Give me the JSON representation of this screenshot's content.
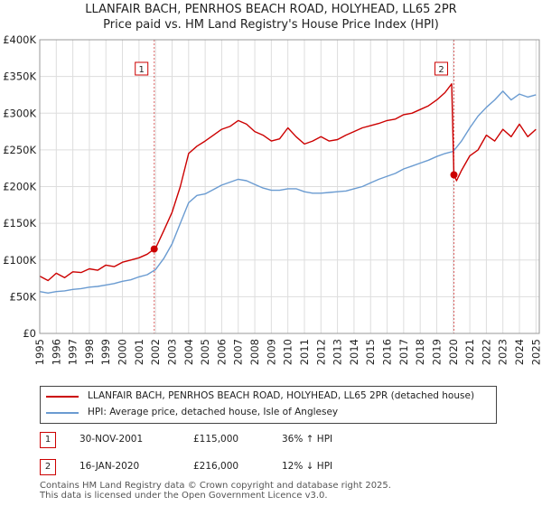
{
  "title_line1": "LLANFAIR BACH, PENRHOS BEACH ROAD, HOLYHEAD, LL65 2PR",
  "title_line2": "Price paid vs. HM Land Registry's House Price Index (HPI)",
  "colors": {
    "property": "#cc0000",
    "hpi": "#6a9bd1",
    "grid": "#dddddd",
    "marker_line": "#cc0000"
  },
  "legend": {
    "property_label": "LLANFAIR BACH, PENRHOS BEACH ROAD, HOLYHEAD, LL65 2PR (detached house)",
    "hpi_label": "HPI: Average price, detached house, Isle of Anglesey"
  },
  "sales": [
    {
      "number": "1",
      "date": "30-NOV-2001",
      "price": "£115,000",
      "hpi": "36% ↑ HPI"
    },
    {
      "number": "2",
      "date": "16-JAN-2020",
      "price": "£216,000",
      "hpi": "12% ↓ HPI"
    }
  ],
  "footer_line1": "Contains HM Land Registry data © Crown copyright and database right 2025.",
  "footer_line2": "This data is licensed under the Open Government Licence v3.0.",
  "chart_data": {
    "type": "line",
    "xlabel": "",
    "ylabel": "",
    "xlim": [
      1995,
      2025.2
    ],
    "ylim": [
      0,
      400000
    ],
    "y_ticks": [
      0,
      50000,
      100000,
      150000,
      200000,
      250000,
      300000,
      350000,
      400000
    ],
    "y_tick_labels": [
      "£0",
      "£50K",
      "£100K",
      "£150K",
      "£200K",
      "£250K",
      "£300K",
      "£350K",
      "£400K"
    ],
    "x_ticks": [
      1995,
      1996,
      1997,
      1998,
      1999,
      2000,
      2001,
      2002,
      2003,
      2004,
      2005,
      2006,
      2007,
      2008,
      2009,
      2010,
      2011,
      2012,
      2013,
      2014,
      2015,
      2016,
      2017,
      2018,
      2019,
      2020,
      2021,
      2022,
      2023,
      2024,
      2025
    ],
    "x_tick_labels": [
      "1995",
      "1996",
      "1997",
      "1998",
      "1999",
      "2000",
      "2001",
      "2002",
      "2003",
      "2004",
      "2005",
      "2006",
      "2007",
      "2008",
      "2009",
      "2010",
      "2011",
      "2012",
      "2013",
      "2014",
      "2015",
      "2016",
      "2017",
      "2018",
      "2019",
      "2020",
      "2021",
      "2022",
      "2023",
      "2024",
      "2025"
    ],
    "grid": true,
    "annotations": [
      {
        "label": "1",
        "x": 2001.92,
        "y": 115000
      },
      {
        "label": "2",
        "x": 2020.04,
        "y": 216000
      }
    ],
    "series": [
      {
        "name": "LLANFAIR BACH, PENRHOS BEACH ROAD, HOLYHEAD, LL65 2PR (detached house)",
        "x": [
          1995.0,
          1995.5,
          1996.0,
          1996.5,
          1997.0,
          1997.5,
          1998.0,
          1998.5,
          1999.0,
          1999.5,
          2000.0,
          2000.5,
          2001.0,
          2001.5,
          2001.92,
          2002.0,
          2002.5,
          2003.0,
          2003.5,
          2004.0,
          2004.5,
          2005.0,
          2005.5,
          2006.0,
          2006.5,
          2007.0,
          2007.5,
          2008.0,
          2008.5,
          2009.0,
          2009.5,
          2010.0,
          2010.5,
          2011.0,
          2011.5,
          2012.0,
          2012.5,
          2013.0,
          2013.5,
          2014.0,
          2014.5,
          2015.0,
          2015.5,
          2016.0,
          2016.5,
          2017.0,
          2017.5,
          2018.0,
          2018.5,
          2019.0,
          2019.5,
          2019.9,
          2020.04,
          2020.2,
          2020.5,
          2021.0,
          2021.5,
          2022.0,
          2022.5,
          2023.0,
          2023.5,
          2024.0,
          2024.5,
          2025.0
        ],
        "values": [
          78000,
          72000,
          82000,
          76000,
          84000,
          83000,
          88000,
          86000,
          93000,
          91000,
          97000,
          100000,
          103000,
          108000,
          115000,
          116000,
          140000,
          165000,
          200000,
          245000,
          255000,
          262000,
          270000,
          278000,
          282000,
          290000,
          285000,
          275000,
          270000,
          262000,
          265000,
          280000,
          268000,
          258000,
          262000,
          268000,
          262000,
          264000,
          270000,
          275000,
          280000,
          283000,
          286000,
          290000,
          292000,
          298000,
          300000,
          305000,
          310000,
          318000,
          328000,
          340000,
          216000,
          208000,
          222000,
          242000,
          250000,
          270000,
          262000,
          278000,
          268000,
          285000,
          268000,
          278000
        ]
      },
      {
        "name": "HPI: Average price, detached house, Isle of Anglesey",
        "x": [
          1995.0,
          1995.5,
          1996.0,
          1996.5,
          1997.0,
          1997.5,
          1998.0,
          1998.5,
          1999.0,
          1999.5,
          2000.0,
          2000.5,
          2001.0,
          2001.5,
          2002.0,
          2002.5,
          2003.0,
          2003.5,
          2004.0,
          2004.5,
          2005.0,
          2005.5,
          2006.0,
          2006.5,
          2007.0,
          2007.5,
          2008.0,
          2008.5,
          2009.0,
          2009.5,
          2010.0,
          2010.5,
          2011.0,
          2011.5,
          2012.0,
          2012.5,
          2013.0,
          2013.5,
          2014.0,
          2014.5,
          2015.0,
          2015.5,
          2016.0,
          2016.5,
          2017.0,
          2017.5,
          2018.0,
          2018.5,
          2019.0,
          2019.5,
          2020.0,
          2020.5,
          2021.0,
          2021.5,
          2022.0,
          2022.5,
          2023.0,
          2023.5,
          2024.0,
          2024.5,
          2025.0
        ],
        "values": [
          57000,
          55000,
          57000,
          58000,
          60000,
          61000,
          63000,
          64000,
          66000,
          68000,
          71000,
          73000,
          77000,
          80000,
          87000,
          102000,
          122000,
          150000,
          178000,
          188000,
          190000,
          196000,
          202000,
          206000,
          210000,
          208000,
          203000,
          198000,
          195000,
          195000,
          197000,
          197000,
          193000,
          191000,
          191000,
          192000,
          193000,
          194000,
          197000,
          200000,
          205000,
          210000,
          214000,
          218000,
          224000,
          228000,
          232000,
          236000,
          241000,
          245000,
          248000,
          262000,
          280000,
          296000,
          308000,
          318000,
          330000,
          318000,
          326000,
          322000,
          325000
        ]
      }
    ]
  }
}
